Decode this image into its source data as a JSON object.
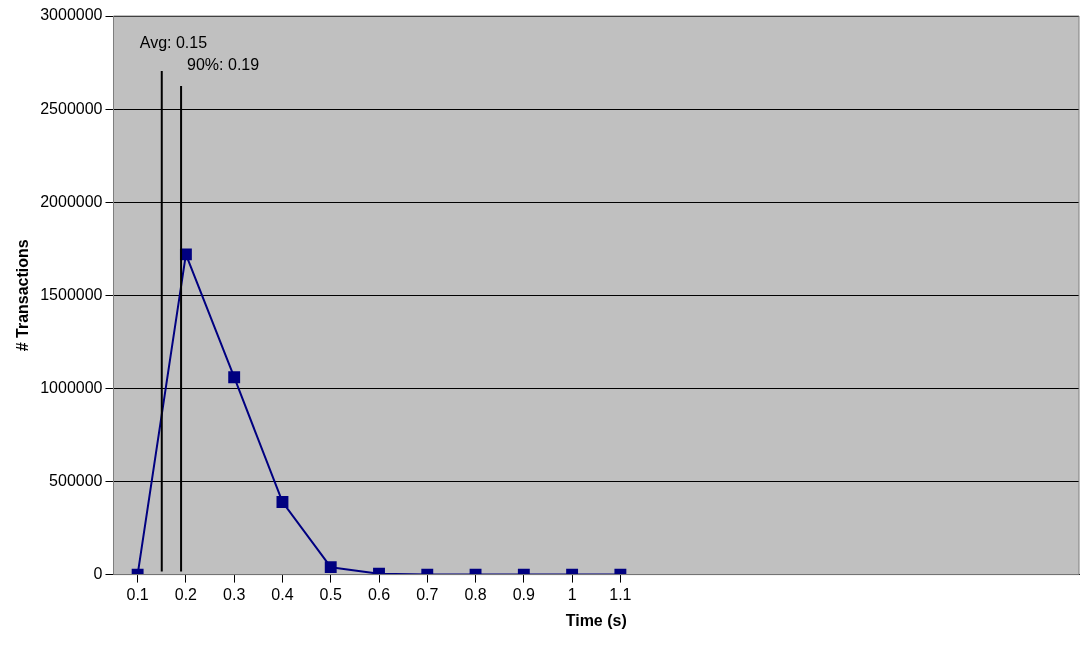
{
  "chart_data": {
    "type": "line",
    "xlabel": "Time (s)",
    "ylabel": "# Transactions",
    "x": [
      0.1,
      0.2,
      0.3,
      0.4,
      0.5,
      0.6,
      0.7,
      0.8,
      0.9,
      1,
      1.1
    ],
    "series": [
      {
        "color": "#000080",
        "values": [
          0,
          1720000,
          1060000,
          390000,
          40000,
          5000,
          0,
          0,
          0,
          0,
          0
        ]
      }
    ],
    "xlim": [
      0.05,
      2.05
    ],
    "xticks": [
      0.1,
      0.2,
      0.3,
      0.4,
      0.5,
      0.6,
      0.7,
      0.8,
      0.9,
      1,
      1.1
    ],
    "ylim": [
      0,
      3000000
    ],
    "yticks": [
      0,
      500000,
      1000000,
      1500000,
      2000000,
      2500000,
      3000000
    ],
    "ref_lines": [
      {
        "axis": "x",
        "value": 0.15,
        "label": "Avg: 0.15",
        "color": "#000000"
      },
      {
        "axis": "x",
        "value": 0.19,
        "label": "90%: 0.19",
        "color": "#000000"
      }
    ],
    "grid": "y",
    "legend": false,
    "marker": "square",
    "line_style": "solid"
  }
}
